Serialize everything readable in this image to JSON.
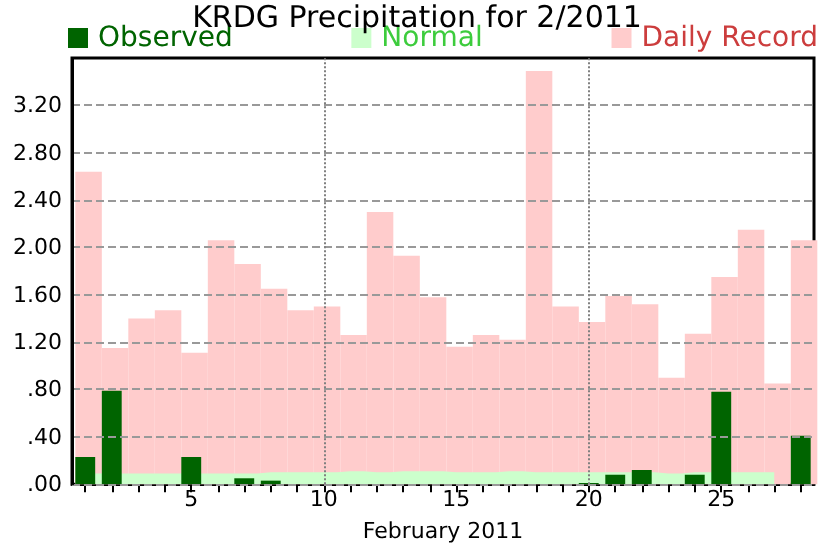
{
  "chart_data": {
    "type": "bar",
    "title": "KRDG Precipitation for 2/2011",
    "xlabel": "February 2011",
    "x": [
      1,
      2,
      3,
      4,
      5,
      6,
      7,
      8,
      9,
      10,
      11,
      12,
      13,
      14,
      15,
      16,
      17,
      18,
      19,
      20,
      21,
      22,
      23,
      24,
      25,
      26,
      27,
      28
    ],
    "series": [
      {
        "name": "Daily Record",
        "color": "#ffcccc",
        "values": [
          2.64,
          1.15,
          1.4,
          1.47,
          1.11,
          2.06,
          1.86,
          1.65,
          1.47,
          1.5,
          1.26,
          2.3,
          1.93,
          1.58,
          1.16,
          1.26,
          1.22,
          3.49,
          1.5,
          1.37,
          1.59,
          1.52,
          0.9,
          1.27,
          1.75,
          2.15,
          0.85,
          2.06
        ]
      },
      {
        "name": "Normal",
        "type": "area",
        "color": "#ccffcc",
        "values": [
          0.09,
          null,
          0.09,
          0.09,
          0.09,
          0.09,
          0.09,
          0.1,
          0.1,
          0.1,
          0.11,
          0.1,
          0.11,
          0.11,
          0.1,
          0.1,
          0.11,
          0.1,
          0.1,
          0.1,
          0.1,
          0.1,
          0.09,
          0.1,
          null,
          0.1,
          0.1,
          null
        ]
      },
      {
        "name": "Observed",
        "color": "#006400",
        "values": [
          0.23,
          0.79,
          0,
          0,
          0.23,
          0,
          0.05,
          0.03,
          0,
          0,
          0,
          0,
          0,
          0,
          0,
          0,
          0,
          0,
          0,
          0.01,
          0.08,
          0.12,
          0,
          0.08,
          0.78,
          0,
          0,
          0.41
        ]
      }
    ],
    "xlim": [
      0.5,
      28.5
    ],
    "xticks": [
      {
        "value": 1,
        "label": null
      },
      {
        "value": 2,
        "label": null
      },
      {
        "value": 3,
        "label": null
      },
      {
        "value": 4,
        "label": null
      },
      5,
      {
        "value": 6,
        "label": null
      },
      {
        "value": 7,
        "label": null
      },
      {
        "value": 8,
        "label": null
      },
      {
        "value": 9,
        "label": null
      },
      10,
      {
        "value": 11,
        "label": null
      },
      {
        "value": 12,
        "label": null
      },
      {
        "value": 13,
        "label": null
      },
      {
        "value": 14,
        "label": null
      },
      15,
      {
        "value": 16,
        "label": null
      },
      {
        "value": 17,
        "label": null
      },
      {
        "value": 18,
        "label": null
      },
      {
        "value": 19,
        "label": null
      },
      20,
      {
        "value": 21,
        "label": null
      },
      {
        "value": 22,
        "label": null
      },
      {
        "value": 23,
        "label": null
      },
      {
        "value": 24,
        "label": null
      },
      25,
      {
        "value": 26,
        "label": null
      },
      {
        "value": 27,
        "label": null
      },
      {
        "value": 28,
        "label": null
      }
    ],
    "ylim": [
      0,
      3.6
    ],
    "yticks": [
      {
        "value": 0,
        "label": ".00"
      },
      {
        "value": 0.4,
        "label": ".40"
      },
      {
        "value": 0.8,
        "label": ".80"
      },
      {
        "value": 1.2,
        "label": "1.20"
      },
      {
        "value": 1.6,
        "label": "1.60"
      },
      {
        "value": 2.0,
        "label": "2.00"
      },
      {
        "value": 2.4,
        "label": "2.40"
      },
      {
        "value": 2.8,
        "label": "2.80"
      },
      {
        "value": 3.2,
        "label": "3.20"
      }
    ],
    "grid": "y",
    "ref_lines": [
      {
        "axis": "x",
        "value": 10,
        "line_style": "dotted",
        "color": "#808080"
      },
      {
        "axis": "x",
        "value": 20,
        "line_style": "dotted",
        "color": "#808080"
      }
    ],
    "legend": "top"
  }
}
